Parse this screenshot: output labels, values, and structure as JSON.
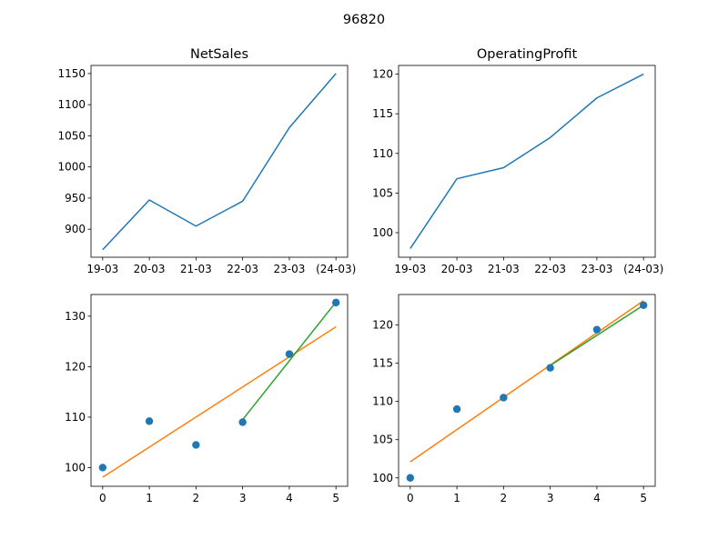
{
  "suptitle": "96820",
  "colors": {
    "line": "#1f77b4",
    "scatter": "#1f77b4",
    "fit_all": "#ff7f0e",
    "fit_recent": "#2ca02c",
    "axis": "#000000",
    "background": "#ffffff"
  },
  "chart_data": [
    {
      "id": "net-sales",
      "type": "line",
      "title": "NetSales",
      "categories": [
        "19-03",
        "20-03",
        "21-03",
        "22-03",
        "23-03",
        "(24-03)"
      ],
      "series": [
        {
          "values": [
            867,
            947,
            905,
            945,
            1063,
            1150
          ]
        }
      ],
      "ylim": [
        855,
        1163
      ],
      "yticks": [
        900,
        950,
        1000,
        1050,
        1100,
        1150
      ],
      "grid": false
    },
    {
      "id": "operating-profit",
      "type": "line",
      "title": "OperatingProfit",
      "categories": [
        "19-03",
        "20-03",
        "21-03",
        "22-03",
        "23-03",
        "(24-03)"
      ],
      "series": [
        {
          "values": [
            98.0,
            106.8,
            108.2,
            112.0,
            117.0,
            120.0
          ]
        }
      ],
      "ylim": [
        96.9,
        121.1
      ],
      "yticks": [
        100,
        105,
        110,
        115,
        120
      ],
      "grid": false
    },
    {
      "id": "net-sales-index",
      "type": "scatter",
      "title": "",
      "x": [
        0,
        1,
        2,
        3,
        4,
        5
      ],
      "y": [
        100.0,
        109.2,
        104.5,
        109.0,
        122.5,
        132.7
      ],
      "fits": [
        {
          "kind": "all",
          "x": [
            0,
            5
          ],
          "y": [
            98.1,
            127.9
          ]
        },
        {
          "kind": "recent",
          "x": [
            3,
            5
          ],
          "y": [
            109.5,
            132.8
          ]
        }
      ],
      "xlim": [
        -0.25,
        5.25
      ],
      "ylim": [
        96.3,
        134.3
      ],
      "xticks": [
        0,
        1,
        2,
        3,
        4,
        5
      ],
      "yticks": [
        100,
        110,
        120,
        130
      ],
      "grid": false
    },
    {
      "id": "operating-profit-index",
      "type": "scatter",
      "title": "",
      "x": [
        0,
        1,
        2,
        3,
        4,
        5
      ],
      "y": [
        100.0,
        109.0,
        110.5,
        114.4,
        119.4,
        122.6
      ],
      "fits": [
        {
          "kind": "all",
          "x": [
            0,
            5
          ],
          "y": [
            102.1,
            123.2
          ]
        },
        {
          "kind": "recent",
          "x": [
            3,
            5
          ],
          "y": [
            114.7,
            122.6
          ]
        }
      ],
      "xlim": [
        -0.25,
        5.25
      ],
      "ylim": [
        98.9,
        124.0
      ],
      "xticks": [
        0,
        1,
        2,
        3,
        4,
        5
      ],
      "yticks": [
        100,
        105,
        110,
        115,
        120
      ],
      "grid": false
    }
  ]
}
